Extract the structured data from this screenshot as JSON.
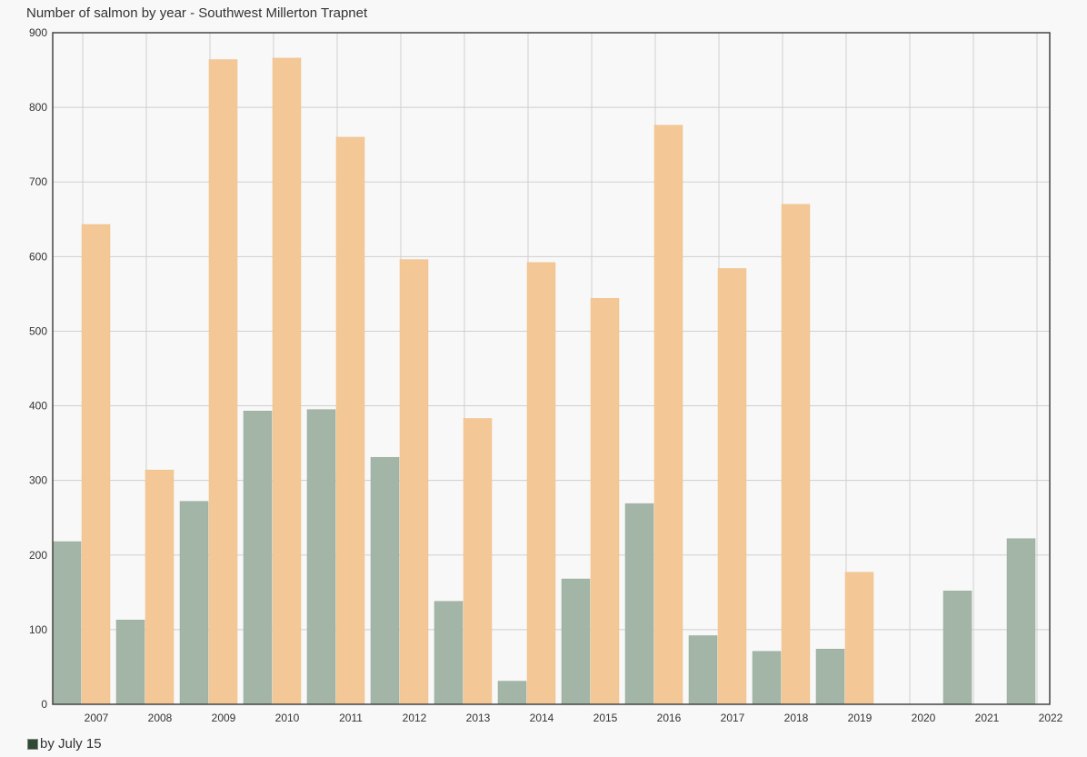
{
  "chart_data": {
    "type": "bar",
    "title": "Number of salmon by year - Southwest Millerton Trapnet",
    "xlabel": "",
    "ylabel": "",
    "ylim": [
      0,
      900
    ],
    "yticks": [
      "0",
      "100",
      "200",
      "300",
      "400",
      "500",
      "600",
      "700",
      "800",
      "900"
    ],
    "categories": [
      "2007",
      "2008",
      "2009",
      "2010",
      "2011",
      "2012",
      "2013",
      "2014",
      "2015",
      "2016",
      "2017",
      "2018",
      "2019",
      "2020",
      "2021",
      "2022"
    ],
    "grid": true,
    "legend_position": "bottom-left",
    "series": [
      {
        "name": "by July 15",
        "color": "#a3b5a6",
        "values": [
          218,
          113,
          272,
          393,
          395,
          331,
          138,
          31,
          168,
          269,
          92,
          71,
          74,
          null,
          152,
          222
        ]
      },
      {
        "color": "#f4c896",
        "values": [
          643,
          314,
          864,
          866,
          760,
          596,
          383,
          592,
          544,
          776,
          584,
          670,
          177,
          null,
          null,
          null
        ]
      }
    ]
  },
  "legend": {
    "label": "by July 15",
    "swatch_color": "#2e4a30"
  }
}
